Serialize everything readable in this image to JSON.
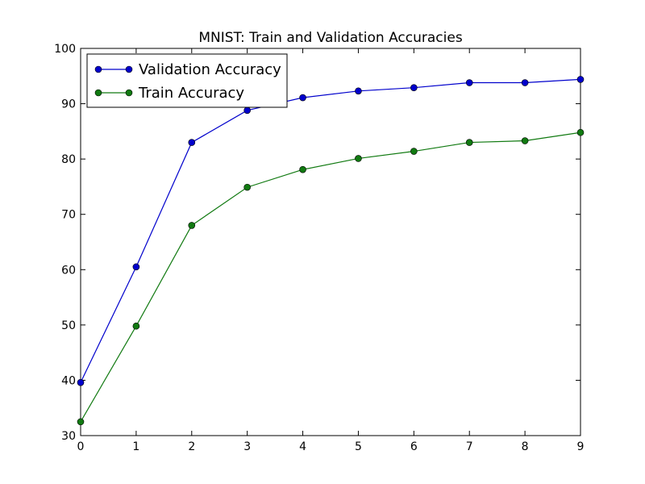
{
  "chart_data": {
    "type": "line",
    "title": "MNIST: Train and Validation Accuracies",
    "xlabel": "",
    "ylabel": "",
    "x": [
      0,
      1,
      2,
      3,
      4,
      5,
      6,
      7,
      8,
      9
    ],
    "xlim": [
      0,
      9
    ],
    "ylim": [
      30,
      100
    ],
    "xticks": [
      0,
      1,
      2,
      3,
      4,
      5,
      6,
      7,
      8,
      9
    ],
    "yticks": [
      30,
      40,
      50,
      60,
      70,
      80,
      90,
      100
    ],
    "grid": false,
    "legend_position": "upper-left",
    "series": [
      {
        "name": "Validation Accuracy",
        "color": "#0000cc",
        "values": [
          39.6,
          60.5,
          83.0,
          88.8,
          91.1,
          92.3,
          92.9,
          93.8,
          93.8,
          94.4
        ]
      },
      {
        "name": "Train Accuracy",
        "color": "#117a11",
        "values": [
          32.5,
          49.8,
          68.0,
          74.9,
          78.1,
          80.1,
          81.4,
          83.0,
          83.3,
          84.8
        ]
      }
    ]
  }
}
